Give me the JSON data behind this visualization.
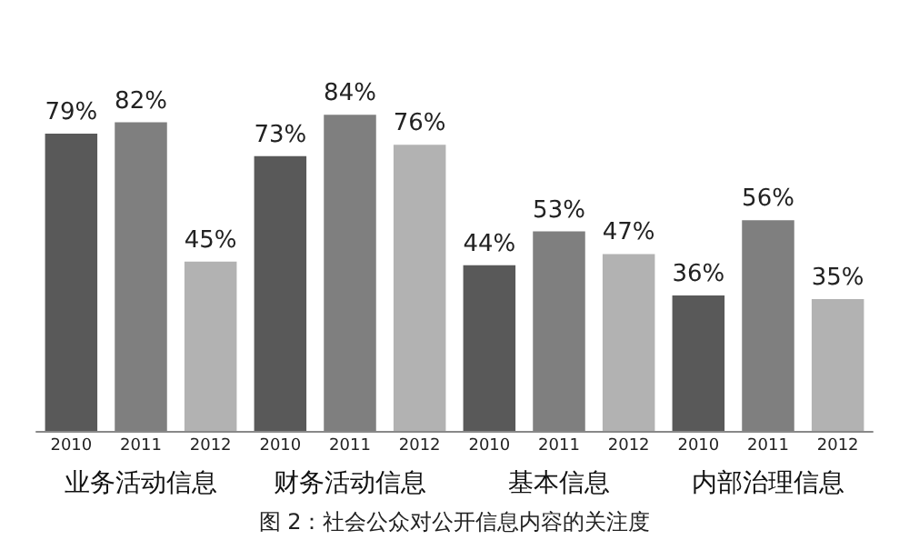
{
  "chart_data": {
    "type": "bar",
    "categories": [
      "业务活动信息",
      "财务活动信息",
      "基本信息",
      "内部治理信息"
    ],
    "series": [
      {
        "name": "2010",
        "color": "#595959",
        "values": [
          79,
          73,
          44,
          36
        ],
        "value_labels": [
          "79%",
          "73%",
          "44%",
          "36%"
        ]
      },
      {
        "name": "2011",
        "color": "#7f7f7f",
        "values": [
          82,
          84,
          53,
          56
        ],
        "value_labels": [
          "82%",
          "84%",
          "53%",
          "56%"
        ]
      },
      {
        "name": "2012",
        "color": "#b2b2b2",
        "values": [
          45,
          76,
          47,
          35
        ],
        "value_labels": [
          "45%",
          "76%",
          "47%",
          "35%"
        ]
      }
    ],
    "legend": false,
    "grid": false,
    "annotations": [
      "图 2：社会公众对公开信息内容的关注度"
    ]
  }
}
